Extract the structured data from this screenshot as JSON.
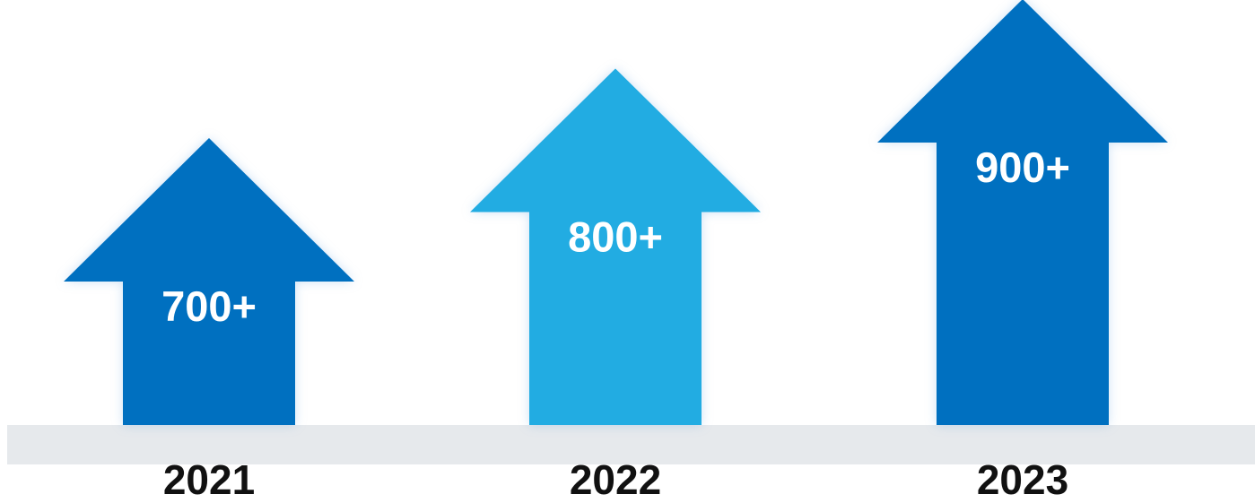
{
  "chart_data": {
    "type": "bar",
    "categories": [
      "2021",
      "2022",
      "2023"
    ],
    "values": [
      700,
      800,
      900
    ],
    "value_labels": [
      "700+",
      "800+",
      "900+"
    ],
    "colors": [
      "#0070c0",
      "#22ace2",
      "#0070c0"
    ],
    "baseline_color": "#e6e9ec",
    "shape": "up-arrow",
    "grid": false,
    "legend": "none"
  }
}
